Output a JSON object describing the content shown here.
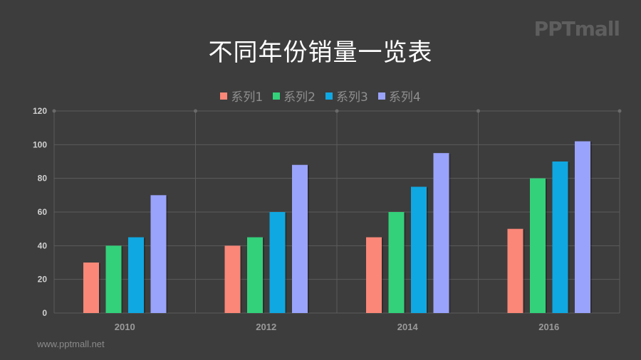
{
  "slide": {
    "title": "不同年份销量一览表",
    "logo": "PPTmall",
    "footer": "www.pptmall.net"
  },
  "legend": [
    {
      "label": "系列1",
      "color": "#fa8778"
    },
    {
      "label": "系列2",
      "color": "#33d17a"
    },
    {
      "label": "系列3",
      "color": "#0fa8e2"
    },
    {
      "label": "系列4",
      "color": "#9aa3fb"
    }
  ],
  "chart_data": {
    "type": "bar",
    "title": "不同年份销量一览表",
    "xlabel": "",
    "ylabel": "",
    "categories": [
      "2010",
      "2012",
      "2014",
      "2016"
    ],
    "series": [
      {
        "name": "系列1",
        "color": "#fa8778",
        "values": [
          30,
          40,
          45,
          50
        ]
      },
      {
        "name": "系列2",
        "color": "#33d17a",
        "values": [
          40,
          45,
          60,
          80
        ]
      },
      {
        "name": "系列3",
        "color": "#0fa8e2",
        "values": [
          45,
          60,
          75,
          90
        ]
      },
      {
        "name": "系列4",
        "color": "#9aa3fb",
        "values": [
          70,
          88,
          95,
          102
        ]
      }
    ],
    "ylim": [
      0,
      120
    ],
    "yticks": [
      0,
      20,
      40,
      60,
      80,
      100,
      120
    ],
    "grid": true,
    "legend_position": "top"
  }
}
